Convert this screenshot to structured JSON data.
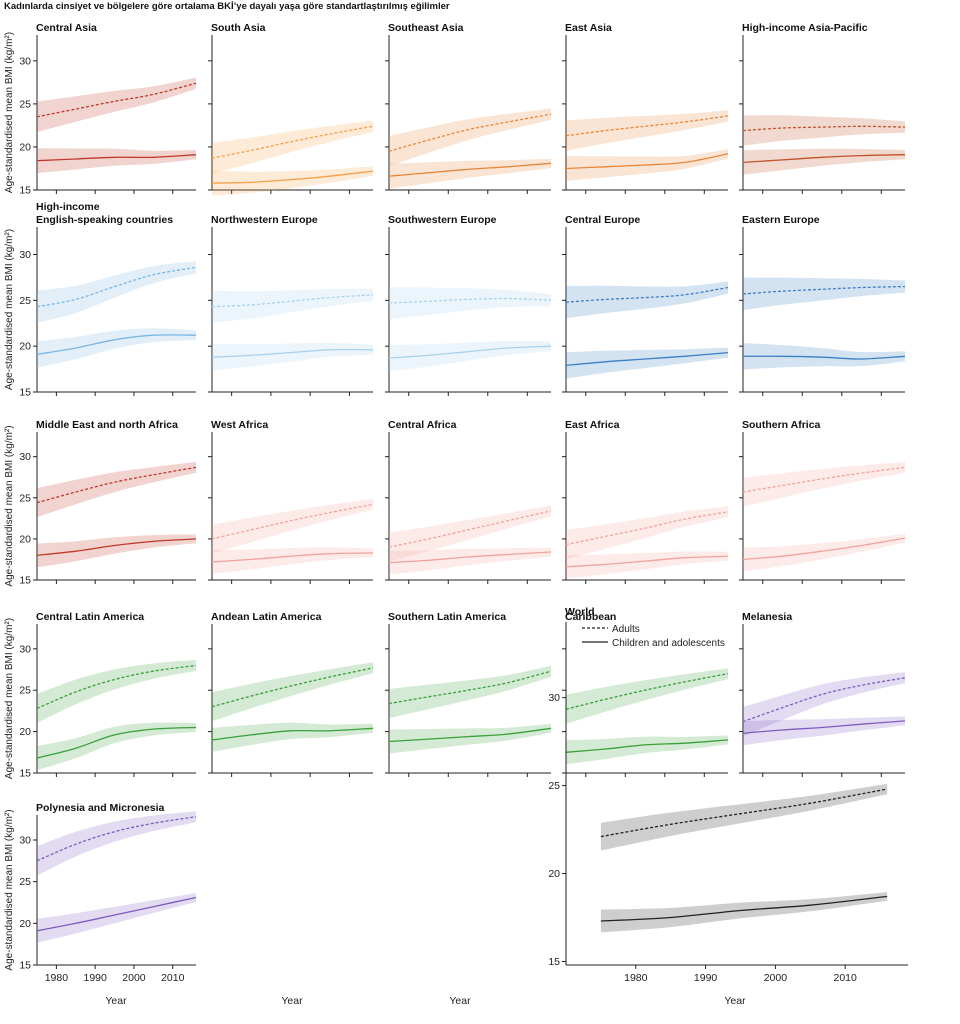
{
  "figure": {
    "title": "Kadınlarda cinsiyet ve bölgelere göre ortalama BKİ’ye dayalı yaşa göre standartlaştırılmış eğilimler",
    "ylabel": "Age-standardised mean BMI (kg/m²)",
    "xlabel": "Year",
    "legend": {
      "adults": "Adults",
      "children": "Children and adolescents"
    }
  },
  "chart_data": [
    {
      "type": "line",
      "title": "Central Asia",
      "color": "#c0392b",
      "xlim": [
        1975,
        2016
      ],
      "ylim": [
        15,
        33
      ],
      "x": [
        1975,
        1985,
        1995,
        2005,
        2016
      ],
      "series": [
        {
          "name": "Adults",
          "values": [
            23.5,
            24.4,
            25.3,
            26.1,
            27.4
          ]
        },
        {
          "name": "Children and adolescents",
          "values": [
            18.4,
            18.6,
            18.8,
            18.8,
            19.1
          ]
        }
      ]
    },
    {
      "type": "line",
      "title": "South Asia",
      "color": "#f5a04a",
      "xlim": [
        1975,
        2016
      ],
      "ylim": [
        15,
        33
      ],
      "x": [
        1975,
        1985,
        1995,
        2005,
        2016
      ],
      "series": [
        {
          "name": "Adults",
          "values": [
            18.7,
            19.6,
            20.6,
            21.5,
            22.4
          ]
        },
        {
          "name": "Children and adolescents",
          "values": [
            15.8,
            15.9,
            16.2,
            16.6,
            17.2
          ]
        }
      ]
    },
    {
      "type": "line",
      "title": "Southeast Asia",
      "color": "#e8873a",
      "xlim": [
        1975,
        2016
      ],
      "ylim": [
        15,
        33
      ],
      "x": [
        1975,
        1985,
        1995,
        2005,
        2016
      ],
      "series": [
        {
          "name": "Adults",
          "values": [
            19.5,
            20.8,
            22.0,
            22.9,
            23.8
          ]
        },
        {
          "name": "Children and adolescents",
          "values": [
            16.6,
            17.0,
            17.4,
            17.7,
            18.1
          ]
        }
      ]
    },
    {
      "type": "line",
      "title": "East Asia",
      "color": "#e8873a",
      "xlim": [
        1975,
        2016
      ],
      "ylim": [
        15,
        33
      ],
      "x": [
        1975,
        1985,
        1995,
        2005,
        2016
      ],
      "series": [
        {
          "name": "Adults",
          "values": [
            21.3,
            21.9,
            22.4,
            22.9,
            23.6
          ]
        },
        {
          "name": "Children and adolescents",
          "values": [
            17.5,
            17.7,
            17.9,
            18.2,
            19.2
          ]
        }
      ]
    },
    {
      "type": "line",
      "title": "High-income Asia-Pacific",
      "color": "#c2532a",
      "xlim": [
        1975,
        2016
      ],
      "ylim": [
        15,
        33
      ],
      "x": [
        1975,
        1985,
        1995,
        2005,
        2016
      ],
      "series": [
        {
          "name": "Adults",
          "values": [
            21.9,
            22.2,
            22.3,
            22.4,
            22.3
          ]
        },
        {
          "name": "Children and adolescents",
          "values": [
            18.2,
            18.5,
            18.8,
            19.0,
            19.1
          ]
        }
      ]
    },
    {
      "type": "line",
      "title": "High-income\nEnglish-speaking countries",
      "color": "#7ab6e3",
      "xlim": [
        1975,
        2016
      ],
      "ylim": [
        15,
        33
      ],
      "x": [
        1975,
        1985,
        1995,
        2005,
        2016
      ],
      "series": [
        {
          "name": "Adults",
          "values": [
            24.3,
            25.1,
            26.5,
            27.8,
            28.6
          ]
        },
        {
          "name": "Children and adolescents",
          "values": [
            19.1,
            19.8,
            20.7,
            21.2,
            21.2
          ]
        }
      ]
    },
    {
      "type": "line",
      "title": "Northwestern Europe",
      "color": "#a9d2ee",
      "xlim": [
        1975,
        2016
      ],
      "ylim": [
        15,
        33
      ],
      "x": [
        1975,
        1985,
        1995,
        2005,
        2016
      ],
      "series": [
        {
          "name": "Adults",
          "values": [
            24.3,
            24.5,
            24.9,
            25.3,
            25.6
          ]
        },
        {
          "name": "Children and adolescents",
          "values": [
            18.8,
            19.0,
            19.3,
            19.6,
            19.6
          ]
        }
      ]
    },
    {
      "type": "line",
      "title": "Southwestern Europe",
      "color": "#a9d2ee",
      "xlim": [
        1975,
        2016
      ],
      "ylim": [
        15,
        33
      ],
      "x": [
        1975,
        1985,
        1995,
        2005,
        2016
      ],
      "series": [
        {
          "name": "Adults",
          "values": [
            24.7,
            24.9,
            25.1,
            25.2,
            25.0
          ]
        },
        {
          "name": "Children and adolescents",
          "values": [
            18.7,
            19.0,
            19.4,
            19.8,
            20.0
          ]
        }
      ]
    },
    {
      "type": "line",
      "title": "Central Europe",
      "color": "#3b7fc4",
      "xlim": [
        1975,
        2016
      ],
      "ylim": [
        15,
        33
      ],
      "x": [
        1975,
        1985,
        1995,
        2005,
        2016
      ],
      "series": [
        {
          "name": "Adults",
          "values": [
            24.8,
            25.1,
            25.3,
            25.6,
            26.4
          ]
        },
        {
          "name": "Children and adolescents",
          "values": [
            17.9,
            18.3,
            18.6,
            18.9,
            19.3
          ]
        }
      ]
    },
    {
      "type": "line",
      "title": "Eastern Europe",
      "color": "#3b7fc4",
      "xlim": [
        1975,
        2016
      ],
      "ylim": [
        15,
        33
      ],
      "x": [
        1975,
        1985,
        1995,
        2005,
        2016
      ],
      "series": [
        {
          "name": "Adults",
          "values": [
            25.7,
            26.0,
            26.2,
            26.4,
            26.5
          ]
        },
        {
          "name": "Children and adolescents",
          "values": [
            18.9,
            18.9,
            18.8,
            18.6,
            18.9
          ]
        }
      ]
    },
    {
      "type": "line",
      "title": "Middle East and north Africa",
      "color": "#c0392b",
      "xlim": [
        1975,
        2016
      ],
      "ylim": [
        15,
        33
      ],
      "x": [
        1975,
        1985,
        1995,
        2005,
        2016
      ],
      "series": [
        {
          "name": "Adults",
          "values": [
            24.4,
            25.7,
            26.9,
            27.8,
            28.7
          ]
        },
        {
          "name": "Children and adolescents",
          "values": [
            18.0,
            18.5,
            19.2,
            19.7,
            20.0
          ]
        }
      ]
    },
    {
      "type": "line",
      "title": "West Africa",
      "color": "#f2a39b",
      "xlim": [
        1975,
        2016
      ],
      "ylim": [
        15,
        33
      ],
      "x": [
        1975,
        1985,
        1995,
        2005,
        2016
      ],
      "series": [
        {
          "name": "Adults",
          "values": [
            20.0,
            21.1,
            22.2,
            23.2,
            24.2
          ]
        },
        {
          "name": "Children and adolescents",
          "values": [
            17.2,
            17.5,
            17.9,
            18.2,
            18.3
          ]
        }
      ]
    },
    {
      "type": "line",
      "title": "Central Africa",
      "color": "#f2a39b",
      "xlim": [
        1975,
        2016
      ],
      "ylim": [
        15,
        33
      ],
      "x": [
        1975,
        1985,
        1995,
        2005,
        2016
      ],
      "series": [
        {
          "name": "Adults",
          "values": [
            19.0,
            20.0,
            21.1,
            22.2,
            23.4
          ]
        },
        {
          "name": "Children and adolescents",
          "values": [
            17.1,
            17.4,
            17.8,
            18.1,
            18.4
          ]
        }
      ]
    },
    {
      "type": "line",
      "title": "East Africa",
      "color": "#f2a39b",
      "xlim": [
        1975,
        2016
      ],
      "ylim": [
        15,
        33
      ],
      "x": [
        1975,
        1985,
        1995,
        2005,
        2016
      ],
      "series": [
        {
          "name": "Adults",
          "values": [
            19.3,
            20.3,
            21.3,
            22.4,
            23.3
          ]
        },
        {
          "name": "Children and adolescents",
          "values": [
            16.6,
            16.9,
            17.3,
            17.7,
            17.9
          ]
        }
      ]
    },
    {
      "type": "line",
      "title": "Southern Africa",
      "color": "#f2a39b",
      "xlim": [
        1975,
        2016
      ],
      "ylim": [
        15,
        33
      ],
      "x": [
        1975,
        1985,
        1995,
        2005,
        2016
      ],
      "series": [
        {
          "name": "Adults",
          "values": [
            25.7,
            26.5,
            27.3,
            28.0,
            28.7
          ]
        },
        {
          "name": "Children and adolescents",
          "values": [
            17.5,
            17.9,
            18.5,
            19.2,
            20.1
          ]
        }
      ]
    },
    {
      "type": "line",
      "title": "Central Latin America",
      "color": "#3aa03a",
      "xlim": [
        1975,
        2016
      ],
      "ylim": [
        15,
        33
      ],
      "x": [
        1975,
        1985,
        1995,
        2005,
        2016
      ],
      "series": [
        {
          "name": "Adults",
          "values": [
            22.8,
            24.8,
            26.3,
            27.3,
            28.0
          ]
        },
        {
          "name": "Children and adolescents",
          "values": [
            16.8,
            18.0,
            19.6,
            20.3,
            20.5
          ]
        }
      ]
    },
    {
      "type": "line",
      "title": "Andean Latin America",
      "color": "#3aa03a",
      "xlim": [
        1975,
        2016
      ],
      "ylim": [
        15,
        33
      ],
      "x": [
        1975,
        1985,
        1995,
        2005,
        2016
      ],
      "series": [
        {
          "name": "Adults",
          "values": [
            23.0,
            24.3,
            25.5,
            26.6,
            27.7
          ]
        },
        {
          "name": "Children and adolescents",
          "values": [
            19.0,
            19.6,
            20.1,
            20.1,
            20.4
          ]
        }
      ]
    },
    {
      "type": "line",
      "title": "Southern Latin America",
      "color": "#3aa03a",
      "xlim": [
        1975,
        2016
      ],
      "ylim": [
        15,
        33
      ],
      "x": [
        1975,
        1985,
        1995,
        2005,
        2016
      ],
      "series": [
        {
          "name": "Adults",
          "values": [
            23.4,
            24.2,
            25.0,
            25.9,
            27.3
          ]
        },
        {
          "name": "Children and adolescents",
          "values": [
            18.8,
            19.1,
            19.4,
            19.7,
            20.4
          ]
        }
      ]
    },
    {
      "type": "line",
      "title": "Caribbean",
      "color": "#3aa03a",
      "xlim": [
        1975,
        2016
      ],
      "ylim": [
        15,
        33
      ],
      "x": [
        1975,
        1985,
        1995,
        2005,
        2016
      ],
      "series": [
        {
          "name": "Adults",
          "values": [
            22.7,
            23.9,
            25.0,
            26.0,
            27.0
          ]
        },
        {
          "name": "Children and adolescents",
          "values": [
            17.5,
            17.9,
            18.4,
            18.6,
            19.0
          ]
        }
      ]
    },
    {
      "type": "line",
      "title": "Melanesia",
      "color": "#7e5cbf",
      "xlim": [
        1975,
        2016
      ],
      "ylim": [
        15,
        33
      ],
      "x": [
        1975,
        1985,
        1995,
        2005,
        2016
      ],
      "series": [
        {
          "name": "Adults",
          "values": [
            21.2,
            22.9,
            24.5,
            25.6,
            26.5
          ]
        },
        {
          "name": "Children and adolescents",
          "values": [
            19.8,
            20.2,
            20.5,
            20.9,
            21.3
          ]
        }
      ]
    },
    {
      "type": "line",
      "title": "Polynesia and Micronesia",
      "color": "#7e5cbf",
      "xlim": [
        1975,
        2016
      ],
      "ylim": [
        15,
        33
      ],
      "x": [
        1975,
        1985,
        1995,
        2005,
        2016
      ],
      "series": [
        {
          "name": "Adults",
          "values": [
            27.5,
            29.5,
            31.0,
            32.0,
            32.8
          ]
        },
        {
          "name": "Children and adolescents",
          "values": [
            19.1,
            20.0,
            21.0,
            22.0,
            23.1
          ]
        }
      ]
    },
    {
      "type": "line",
      "title": "World",
      "color": "#222222",
      "xlim": [
        1970,
        2019
      ],
      "ylim": [
        14.8,
        34.3
      ],
      "x": [
        1975,
        1985,
        1995,
        2005,
        2016
      ],
      "series": [
        {
          "name": "Adults",
          "values": [
            22.1,
            22.8,
            23.4,
            24.0,
            24.8
          ]
        },
        {
          "name": "Children and adolescents",
          "values": [
            17.3,
            17.5,
            17.9,
            18.2,
            18.7
          ]
        }
      ]
    }
  ]
}
